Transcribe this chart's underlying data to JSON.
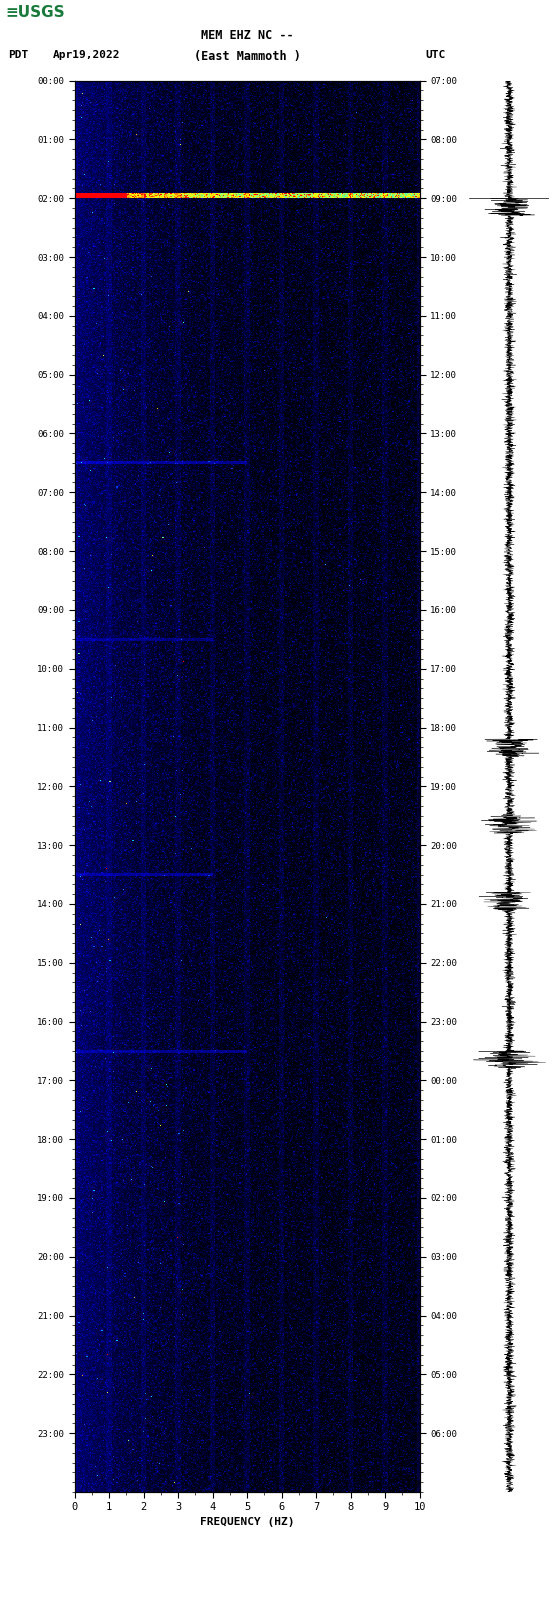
{
  "title_line1": "MEM EHZ NC --",
  "title_line2": "(East Mammoth )",
  "left_label": "PDT",
  "date_label": "Apr19,2022",
  "right_label": "UTC",
  "xlabel": "FREQUENCY (HZ)",
  "freq_min": 0,
  "freq_max": 10,
  "left_yticks": [
    "00:00",
    "01:00",
    "02:00",
    "03:00",
    "04:00",
    "05:00",
    "06:00",
    "07:00",
    "08:00",
    "09:00",
    "10:00",
    "11:00",
    "12:00",
    "13:00",
    "14:00",
    "15:00",
    "16:00",
    "17:00",
    "18:00",
    "19:00",
    "20:00",
    "21:00",
    "22:00",
    "23:00"
  ],
  "right_yticks": [
    "07:00",
    "08:00",
    "09:00",
    "10:00",
    "11:00",
    "12:00",
    "13:00",
    "14:00",
    "15:00",
    "16:00",
    "17:00",
    "18:00",
    "19:00",
    "20:00",
    "21:00",
    "22:00",
    "23:00",
    "00:00",
    "01:00",
    "02:00",
    "03:00",
    "04:00",
    "05:00",
    "06:00"
  ],
  "xticks": [
    0,
    1,
    2,
    3,
    4,
    5,
    6,
    7,
    8,
    9,
    10
  ],
  "fig_bg": "#ffffff",
  "fig_width": 5.52,
  "fig_height": 16.13,
  "dpi": 100
}
